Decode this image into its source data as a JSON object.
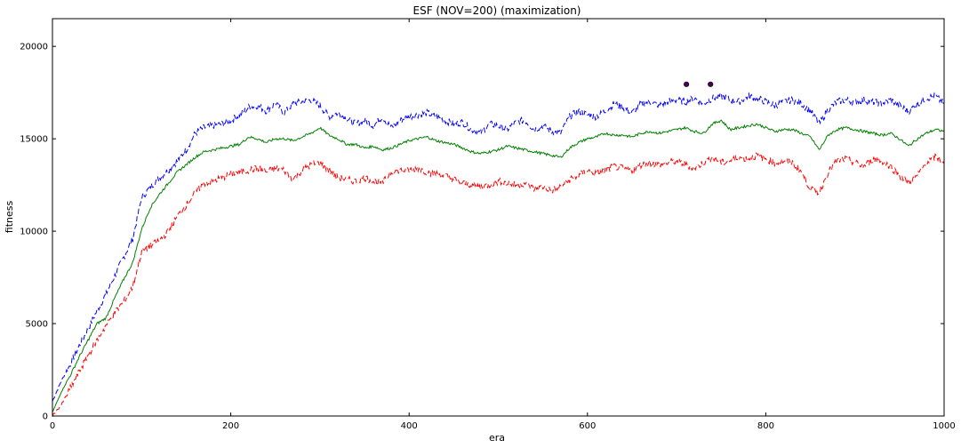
{
  "chart_data": {
    "type": "line",
    "title": "ESF (NOV=200) (maximization)",
    "xlabel": "era",
    "ylabel": "fitness",
    "xlim": [
      0,
      1000
    ],
    "ylim": [
      0,
      21500
    ],
    "x_ticks": [
      0,
      200,
      400,
      600,
      800,
      1000
    ],
    "y_ticks": [
      0,
      5000,
      10000,
      15000,
      20000
    ],
    "grid": false,
    "legend": "none",
    "series": [
      {
        "color": "#0000ff",
        "style": "dashed",
        "points": [
          [
            0,
            800
          ],
          [
            10,
            1900
          ],
          [
            20,
            2800
          ],
          [
            30,
            3800
          ],
          [
            40,
            4700
          ],
          [
            50,
            5700
          ],
          [
            60,
            6600
          ],
          [
            70,
            7600
          ],
          [
            80,
            8600
          ],
          [
            90,
            9600
          ],
          [
            100,
            11800
          ],
          [
            110,
            12400
          ],
          [
            120,
            12900
          ],
          [
            130,
            13300
          ],
          [
            140,
            13800
          ],
          [
            150,
            14400
          ],
          [
            160,
            15300
          ],
          [
            170,
            15600
          ],
          [
            180,
            15700
          ],
          [
            190,
            15800
          ],
          [
            200,
            16000
          ],
          [
            210,
            16300
          ],
          [
            220,
            16700
          ],
          [
            230,
            16800
          ],
          [
            240,
            16500
          ],
          [
            250,
            16900
          ],
          [
            260,
            16400
          ],
          [
            270,
            16900
          ],
          [
            280,
            17000
          ],
          [
            290,
            17100
          ],
          [
            300,
            16800
          ],
          [
            310,
            16200
          ],
          [
            320,
            16400
          ],
          [
            330,
            16100
          ],
          [
            340,
            15800
          ],
          [
            350,
            16000
          ],
          [
            360,
            15700
          ],
          [
            370,
            16200
          ],
          [
            380,
            15600
          ],
          [
            390,
            16000
          ],
          [
            400,
            16200
          ],
          [
            410,
            16300
          ],
          [
            420,
            16400
          ],
          [
            430,
            16200
          ],
          [
            440,
            16000
          ],
          [
            450,
            15800
          ],
          [
            460,
            15900
          ],
          [
            470,
            15500
          ],
          [
            480,
            15300
          ],
          [
            490,
            15800
          ],
          [
            500,
            15700
          ],
          [
            510,
            15500
          ],
          [
            520,
            15900
          ],
          [
            530,
            16000
          ],
          [
            540,
            15500
          ],
          [
            550,
            15700
          ],
          [
            560,
            15400
          ],
          [
            570,
            15300
          ],
          [
            580,
            16200
          ],
          [
            590,
            16500
          ],
          [
            600,
            16300
          ],
          [
            610,
            16200
          ],
          [
            620,
            16500
          ],
          [
            630,
            16900
          ],
          [
            640,
            16700
          ],
          [
            650,
            16400
          ],
          [
            660,
            16900
          ],
          [
            670,
            17000
          ],
          [
            680,
            16800
          ],
          [
            690,
            17000
          ],
          [
            700,
            17100
          ],
          [
            710,
            17000
          ],
          [
            720,
            17200
          ],
          [
            730,
            16900
          ],
          [
            740,
            17200
          ],
          [
            750,
            17300
          ],
          [
            760,
            17100
          ],
          [
            770,
            17000
          ],
          [
            780,
            17300
          ],
          [
            790,
            17200
          ],
          [
            800,
            17000
          ],
          [
            810,
            16800
          ],
          [
            820,
            17000
          ],
          [
            830,
            17100
          ],
          [
            840,
            16900
          ],
          [
            850,
            16500
          ],
          [
            860,
            15800
          ],
          [
            870,
            16600
          ],
          [
            880,
            17000
          ],
          [
            890,
            17100
          ],
          [
            900,
            17000
          ],
          [
            910,
            17100
          ],
          [
            920,
            17000
          ],
          [
            930,
            16900
          ],
          [
            940,
            17100
          ],
          [
            950,
            16800
          ],
          [
            960,
            16500
          ],
          [
            970,
            16900
          ],
          [
            980,
            17200
          ],
          [
            990,
            17300
          ],
          [
            1000,
            16900
          ]
        ]
      },
      {
        "color": "#008000",
        "style": "solid",
        "points": [
          [
            0,
            200
          ],
          [
            10,
            1300
          ],
          [
            20,
            2200
          ],
          [
            30,
            3200
          ],
          [
            40,
            4100
          ],
          [
            50,
            5000
          ],
          [
            60,
            5300
          ],
          [
            70,
            6400
          ],
          [
            80,
            7400
          ],
          [
            90,
            8300
          ],
          [
            100,
            10100
          ],
          [
            110,
            11300
          ],
          [
            120,
            12000
          ],
          [
            130,
            12600
          ],
          [
            140,
            13200
          ],
          [
            150,
            13600
          ],
          [
            160,
            14000
          ],
          [
            170,
            14300
          ],
          [
            180,
            14400
          ],
          [
            190,
            14500
          ],
          [
            200,
            14600
          ],
          [
            210,
            14700
          ],
          [
            220,
            15100
          ],
          [
            230,
            15000
          ],
          [
            240,
            14800
          ],
          [
            250,
            15000
          ],
          [
            260,
            15000
          ],
          [
            270,
            14900
          ],
          [
            280,
            15100
          ],
          [
            290,
            15300
          ],
          [
            300,
            15600
          ],
          [
            310,
            15200
          ],
          [
            320,
            15000
          ],
          [
            330,
            14700
          ],
          [
            340,
            14700
          ],
          [
            350,
            14500
          ],
          [
            360,
            14600
          ],
          [
            370,
            14400
          ],
          [
            380,
            14500
          ],
          [
            390,
            14700
          ],
          [
            400,
            14900
          ],
          [
            410,
            15000
          ],
          [
            420,
            15100
          ],
          [
            430,
            14900
          ],
          [
            440,
            14800
          ],
          [
            450,
            14700
          ],
          [
            460,
            14500
          ],
          [
            470,
            14300
          ],
          [
            480,
            14200
          ],
          [
            490,
            14300
          ],
          [
            500,
            14400
          ],
          [
            510,
            14600
          ],
          [
            520,
            14500
          ],
          [
            530,
            14400
          ],
          [
            540,
            14300
          ],
          [
            550,
            14200
          ],
          [
            560,
            14100
          ],
          [
            570,
            14000
          ],
          [
            580,
            14500
          ],
          [
            590,
            14800
          ],
          [
            600,
            15000
          ],
          [
            610,
            15100
          ],
          [
            620,
            15300
          ],
          [
            630,
            15200
          ],
          [
            640,
            15200
          ],
          [
            650,
            15100
          ],
          [
            660,
            15300
          ],
          [
            670,
            15400
          ],
          [
            680,
            15300
          ],
          [
            690,
            15400
          ],
          [
            700,
            15500
          ],
          [
            710,
            15600
          ],
          [
            720,
            15400
          ],
          [
            730,
            15300
          ],
          [
            740,
            15800
          ],
          [
            750,
            16000
          ],
          [
            760,
            15500
          ],
          [
            770,
            15600
          ],
          [
            780,
            15700
          ],
          [
            790,
            15800
          ],
          [
            800,
            15600
          ],
          [
            810,
            15400
          ],
          [
            820,
            15500
          ],
          [
            830,
            15500
          ],
          [
            840,
            15300
          ],
          [
            850,
            15100
          ],
          [
            860,
            14400
          ],
          [
            870,
            15200
          ],
          [
            880,
            15500
          ],
          [
            890,
            15600
          ],
          [
            900,
            15500
          ],
          [
            910,
            15400
          ],
          [
            920,
            15300
          ],
          [
            930,
            15200
          ],
          [
            940,
            15300
          ],
          [
            950,
            15000
          ],
          [
            960,
            14600
          ],
          [
            970,
            15000
          ],
          [
            980,
            15300
          ],
          [
            990,
            15500
          ],
          [
            1000,
            15400
          ]
        ]
      },
      {
        "color": "#ff0000",
        "style": "dashed",
        "points": [
          [
            0,
            0
          ],
          [
            10,
            600
          ],
          [
            20,
            1500
          ],
          [
            30,
            2400
          ],
          [
            40,
            3300
          ],
          [
            50,
            4100
          ],
          [
            60,
            4900
          ],
          [
            70,
            5600
          ],
          [
            80,
            6200
          ],
          [
            90,
            7000
          ],
          [
            100,
            8900
          ],
          [
            110,
            9200
          ],
          [
            120,
            9500
          ],
          [
            130,
            10000
          ],
          [
            140,
            10800
          ],
          [
            150,
            11400
          ],
          [
            160,
            12100
          ],
          [
            170,
            12600
          ],
          [
            180,
            12700
          ],
          [
            190,
            12900
          ],
          [
            200,
            13100
          ],
          [
            210,
            13200
          ],
          [
            220,
            13300
          ],
          [
            230,
            13400
          ],
          [
            240,
            13200
          ],
          [
            250,
            13400
          ],
          [
            260,
            13300
          ],
          [
            270,
            12800
          ],
          [
            280,
            13300
          ],
          [
            290,
            13600
          ],
          [
            300,
            13700
          ],
          [
            310,
            13300
          ],
          [
            320,
            12900
          ],
          [
            330,
            12800
          ],
          [
            340,
            12700
          ],
          [
            350,
            12900
          ],
          [
            360,
            12700
          ],
          [
            370,
            12600
          ],
          [
            380,
            13200
          ],
          [
            390,
            13300
          ],
          [
            400,
            13300
          ],
          [
            410,
            13400
          ],
          [
            420,
            13200
          ],
          [
            430,
            13100
          ],
          [
            440,
            13000
          ],
          [
            450,
            12800
          ],
          [
            460,
            12600
          ],
          [
            470,
            12500
          ],
          [
            480,
            12400
          ],
          [
            490,
            12500
          ],
          [
            500,
            12700
          ],
          [
            510,
            12600
          ],
          [
            520,
            12500
          ],
          [
            530,
            12600
          ],
          [
            540,
            12300
          ],
          [
            550,
            12400
          ],
          [
            560,
            12200
          ],
          [
            570,
            12400
          ],
          [
            580,
            12800
          ],
          [
            590,
            13000
          ],
          [
            600,
            13300
          ],
          [
            610,
            13100
          ],
          [
            620,
            13300
          ],
          [
            630,
            13500
          ],
          [
            640,
            13400
          ],
          [
            650,
            13300
          ],
          [
            660,
            13600
          ],
          [
            670,
            13700
          ],
          [
            680,
            13600
          ],
          [
            690,
            13700
          ],
          [
            700,
            13800
          ],
          [
            710,
            13600
          ],
          [
            720,
            13400
          ],
          [
            730,
            13700
          ],
          [
            740,
            14000
          ],
          [
            750,
            13700
          ],
          [
            760,
            13800
          ],
          [
            770,
            14000
          ],
          [
            780,
            13900
          ],
          [
            790,
            14100
          ],
          [
            800,
            13900
          ],
          [
            810,
            13700
          ],
          [
            820,
            13800
          ],
          [
            830,
            13700
          ],
          [
            840,
            13200
          ],
          [
            850,
            12300
          ],
          [
            860,
            12100
          ],
          [
            870,
            13200
          ],
          [
            880,
            13800
          ],
          [
            890,
            13900
          ],
          [
            900,
            13700
          ],
          [
            910,
            13500
          ],
          [
            920,
            13900
          ],
          [
            930,
            13800
          ],
          [
            940,
            13500
          ],
          [
            950,
            13000
          ],
          [
            960,
            12600
          ],
          [
            970,
            13000
          ],
          [
            980,
            13700
          ],
          [
            990,
            14000
          ],
          [
            1000,
            13800
          ]
        ]
      }
    ],
    "markers": [
      {
        "x": 711,
        "y": 17950,
        "color": "#4b0055"
      },
      {
        "x": 738,
        "y": 17950,
        "color": "#4b0055"
      }
    ]
  }
}
